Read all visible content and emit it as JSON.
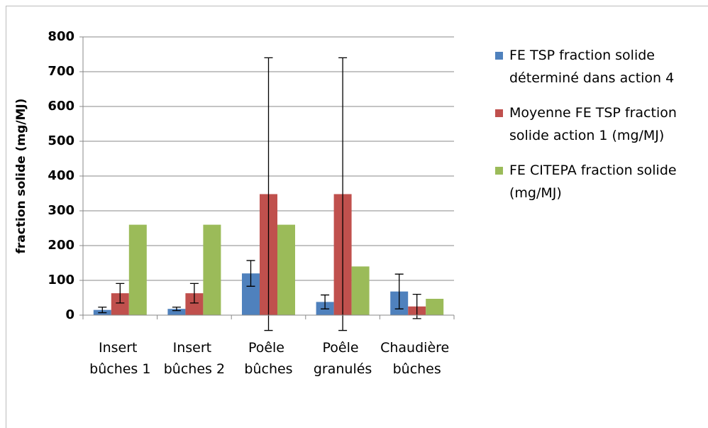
{
  "chart_data": {
    "type": "bar",
    "y_label": "fraction solide (mg/MJ)",
    "categories": [
      "Insert bûches 1",
      "Insert bûches 2",
      "Poêle bûches",
      "Poêle granulés",
      "Chaudière bûches"
    ],
    "series": [
      {
        "name": "FE TSP fraction solide déterminé dans action 4",
        "color": "#4f81bd",
        "values": [
          15,
          18,
          120,
          38,
          68
        ],
        "errors": [
          8,
          5,
          37,
          20,
          50
        ]
      },
      {
        "name": "Moyenne FE TSP fraction solide action 1  (mg/MJ)",
        "color": "#c0504d",
        "values": [
          63,
          63,
          348,
          348,
          25
        ],
        "errors": [
          28,
          28,
          392,
          392,
          35
        ]
      },
      {
        "name": "FE CITEPA fraction solide (mg/MJ)",
        "color": "#9bbb59",
        "values": [
          260,
          260,
          260,
          140,
          47
        ]
      }
    ],
    "ylim": [
      0,
      800
    ],
    "yticks": [
      0,
      100,
      200,
      300,
      400,
      500,
      600,
      700,
      800
    ],
    "grid": true
  }
}
